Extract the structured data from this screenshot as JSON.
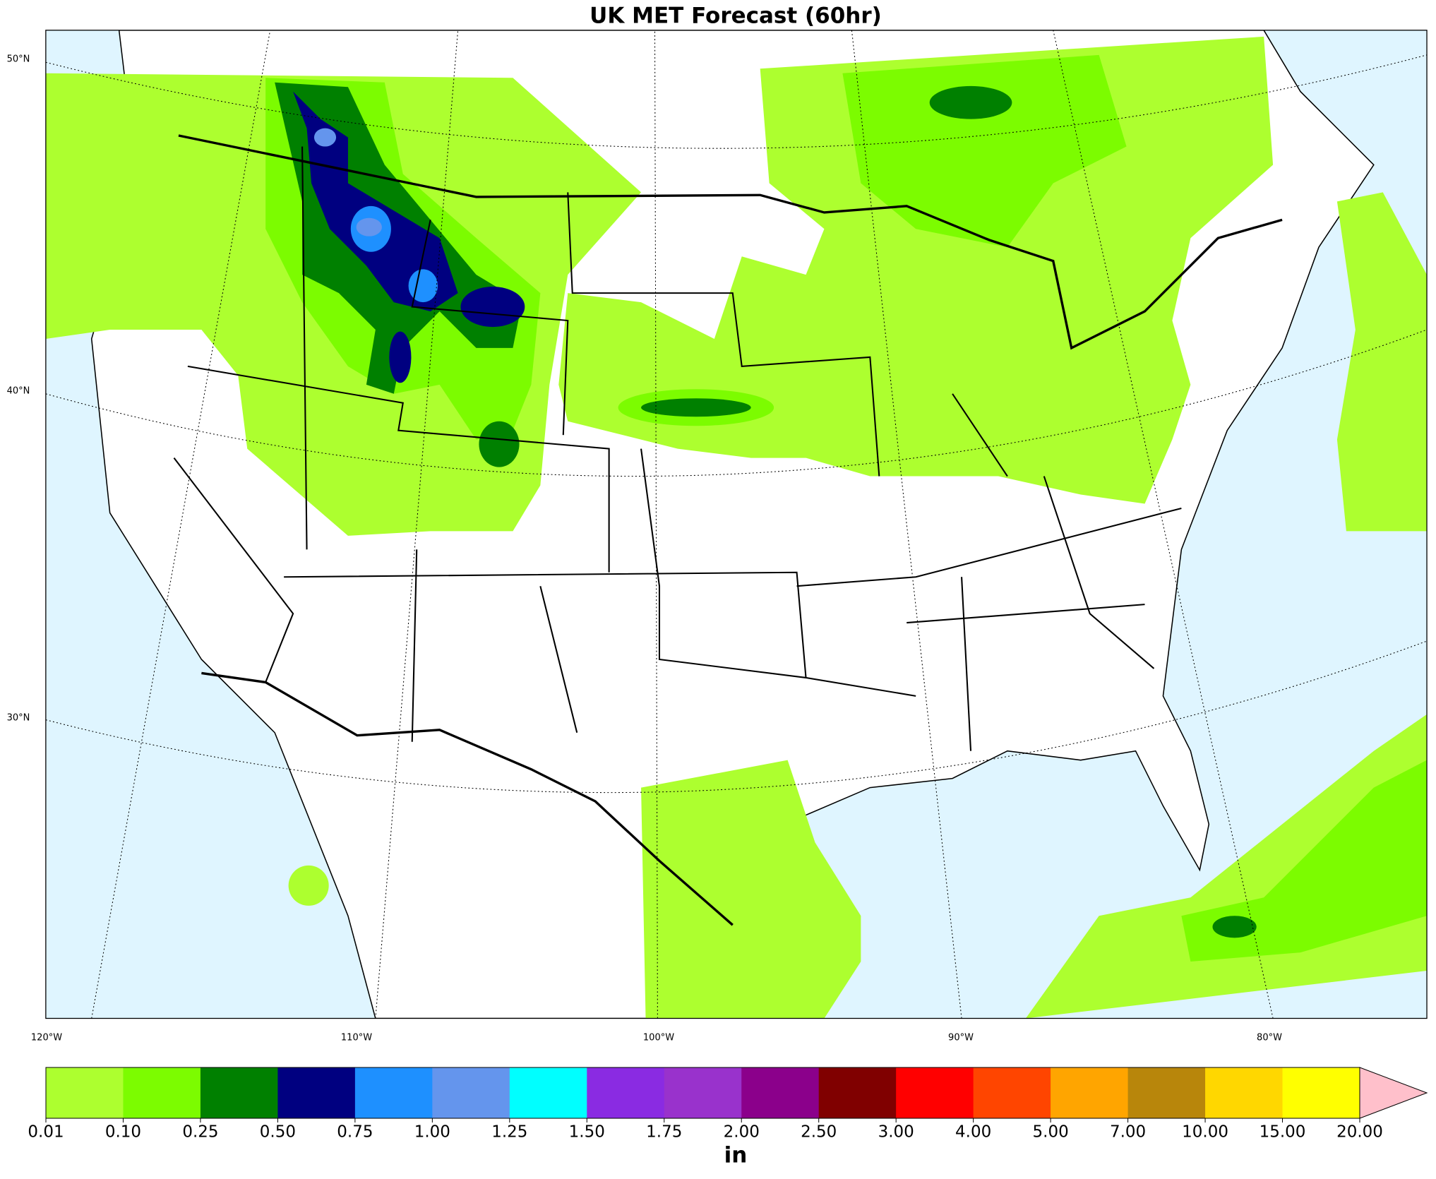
{
  "title": "UK MET Forecast (60hr)",
  "map": {
    "lat_labels": [
      "50°N",
      "40°N",
      "30°N"
    ],
    "lon_labels": [
      "120°W",
      "110°W",
      "100°W",
      "90°W",
      "80°W"
    ]
  },
  "colorbar": {
    "ticks": [
      {
        "value": 0.01,
        "label": "0.01"
      },
      {
        "value": 0.1,
        "label": "0.10"
      },
      {
        "value": 0.25,
        "label": "0.25"
      },
      {
        "value": 0.5,
        "label": "0.50"
      },
      {
        "value": 0.75,
        "label": "0.75"
      },
      {
        "value": 1,
        "label": "1.00"
      },
      {
        "value": 1.25,
        "label": "1.25"
      },
      {
        "value": 1.5,
        "label": "1.50"
      },
      {
        "value": 1.75,
        "label": "1.75"
      },
      {
        "value": 2,
        "label": "2.00"
      },
      {
        "value": 2.5,
        "label": "2.50"
      },
      {
        "value": 3,
        "label": "3.00"
      },
      {
        "value": 4,
        "label": "4.00"
      },
      {
        "value": 5,
        "label": "5.00"
      },
      {
        "value": 7,
        "label": "7.00"
      },
      {
        "value": 10,
        "label": "10.00"
      },
      {
        "value": 15,
        "label": "15.00"
      },
      {
        "value": 20,
        "label": "20.00"
      }
    ],
    "colors": [
      "#adff2f",
      "#7cfc00",
      "#008000",
      "#000080",
      "#1e90ff",
      "#6495ed",
      "#00ffff",
      "#8a2be2",
      "#9932cc",
      "#8b008b",
      "#800000",
      "#ff0000",
      "#ff4500",
      "#ffa500",
      "#b8860b",
      "#ffd700",
      "#ffff00"
    ],
    "extend_color": "#ffc0cb",
    "label": "in"
  }
}
